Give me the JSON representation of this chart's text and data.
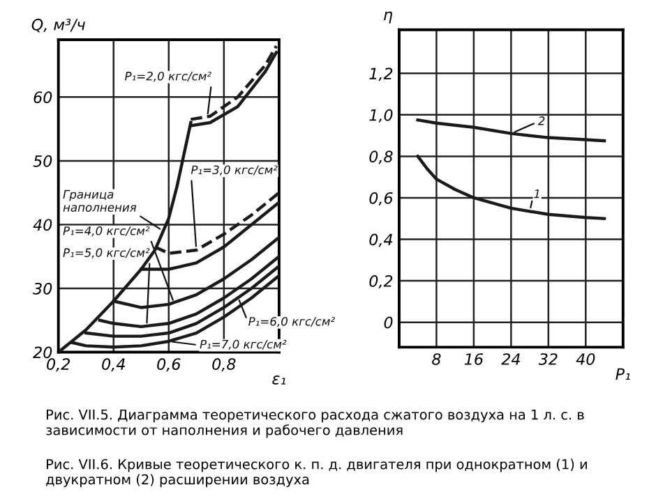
{
  "chart_data": [
    {
      "type": "line",
      "xlabel": "ε₁",
      "ylabel": "Q, м³/ч",
      "xlim": [
        0.2,
        1.0
      ],
      "ylim": [
        20,
        69
      ],
      "xticks": [
        {
          "value": 0.2,
          "label": "0,2"
        },
        {
          "value": 0.4,
          "label": "0,4"
        },
        {
          "value": 0.6,
          "label": "0,6"
        },
        {
          "value": 0.8,
          "label": "0,8"
        }
      ],
      "yticks": [
        20,
        30,
        40,
        50,
        60
      ],
      "grid": true,
      "line_style": "solid",
      "color": "#1a1a1a",
      "series": [
        {
          "x": [
            0.2,
            0.3,
            0.4,
            0.5,
            0.55,
            0.6,
            0.63,
            0.66,
            0.68
          ],
          "values": [
            20,
            23.5,
            28,
            33,
            36,
            41,
            46,
            52,
            56
          ]
        },
        {
          "x": [
            0.68,
            0.75,
            0.85,
            0.95,
            0.99
          ],
          "values": [
            55.5,
            56,
            58.5,
            64,
            67
          ]
        },
        {
          "x": [
            0.68,
            0.75,
            0.85,
            0.95,
            0.99
          ],
          "values": [
            56.5,
            57,
            60,
            65,
            68
          ],
          "line_style": "dashed"
        },
        {
          "x": [
            0.5,
            0.6,
            0.7,
            0.8,
            0.9,
            1.0
          ],
          "values": [
            33,
            33,
            34,
            36.5,
            40,
            43.5
          ]
        },
        {
          "x": [
            0.55,
            0.6,
            0.7,
            0.8,
            0.9,
            1.0
          ],
          "values": [
            36.5,
            35.5,
            36,
            38.5,
            41.5,
            45
          ],
          "line_style": "dashed"
        },
        {
          "x": [
            0.4,
            0.5,
            0.6,
            0.7,
            0.8,
            0.9,
            1.0
          ],
          "values": [
            28,
            27,
            27.5,
            29,
            31.5,
            34.5,
            38
          ]
        },
        {
          "x": [
            0.35,
            0.4,
            0.5,
            0.6,
            0.7,
            0.8,
            0.9,
            1.0
          ],
          "values": [
            25,
            24.5,
            24,
            24.5,
            26,
            28.5,
            31.5,
            35
          ]
        },
        {
          "x": [
            0.3,
            0.4,
            0.5,
            0.6,
            0.7,
            0.8,
            0.9,
            1.0
          ],
          "values": [
            23,
            22.5,
            22.5,
            23,
            24.5,
            27,
            30,
            33.5
          ]
        },
        {
          "x": [
            0.25,
            0.3,
            0.4,
            0.5,
            0.6,
            0.7,
            0.8,
            0.9,
            1.0
          ],
          "values": [
            21.5,
            21,
            20.8,
            21,
            21.7,
            23,
            25.5,
            28.5,
            32
          ]
        }
      ],
      "annotations": [
        {
          "text": "P₁=2,0 кгс/см²",
          "x": 0.74,
          "y": 56.8
        },
        {
          "text": "Граница\nнаполнения",
          "x": 0.58,
          "y": 39
        },
        {
          "text": "P₁=3,0 кгс/см²",
          "x": 0.7,
          "y": 36
        },
        {
          "text": "P₁=4,0 кгс/см²",
          "x": 0.62,
          "y": 27.6
        },
        {
          "text": "P₁=5,0 кгс/см²",
          "x": 0.52,
          "y": 24
        },
        {
          "text": "P₁=6,0 кгс/см²",
          "x": 0.85,
          "y": 28.7
        },
        {
          "text": "P₁=7,0 кгс/см²",
          "x": 0.6,
          "y": 21.7
        },
        "Рис. VII.5. Диаграмма теоретического расхода сжатого воздуха на 1 л. с. в зависимости от наполнения и рабочего давления"
      ]
    },
    {
      "type": "line",
      "xlabel": "P₁",
      "ylabel": "η",
      "xlim": [
        0,
        48
      ],
      "ylim": [
        -0.12,
        1.41
      ],
      "xticks": [
        8,
        16,
        24,
        32,
        40
      ],
      "yticks": [
        {
          "value": 0,
          "label": "0"
        },
        {
          "value": 0.2,
          "label": "0,2"
        },
        {
          "value": 0.4,
          "label": "0,4"
        },
        {
          "value": 0.6,
          "label": "0,6"
        },
        {
          "value": 0.8,
          "label": "0,8"
        },
        {
          "value": 1.0,
          "label": "1,0"
        },
        {
          "value": 1.2,
          "label": "1,2"
        }
      ],
      "grid": true,
      "line_style": "solid",
      "color": "#1a1a1a",
      "series": [
        {
          "x": [
            4,
            6,
            8,
            12,
            16,
            24,
            32,
            40,
            44
          ],
          "values": [
            0.8,
            0.74,
            0.69,
            0.64,
            0.6,
            0.55,
            0.52,
            0.505,
            0.5
          ]
        },
        {
          "x": [
            4,
            8,
            16,
            24,
            32,
            40,
            44
          ],
          "values": [
            0.975,
            0.96,
            0.94,
            0.91,
            0.89,
            0.88,
            0.875
          ]
        }
      ],
      "annotations": [
        {
          "text": "1",
          "x": 28,
          "y": 0.535
        },
        {
          "text": "2",
          "x": 24,
          "y": 0.91
        },
        "Рис. VII.6. Кривые теоретического к. п. д. двигателя при однократном (1) и двукратном (2) расширении воздуха"
      ]
    }
  ]
}
